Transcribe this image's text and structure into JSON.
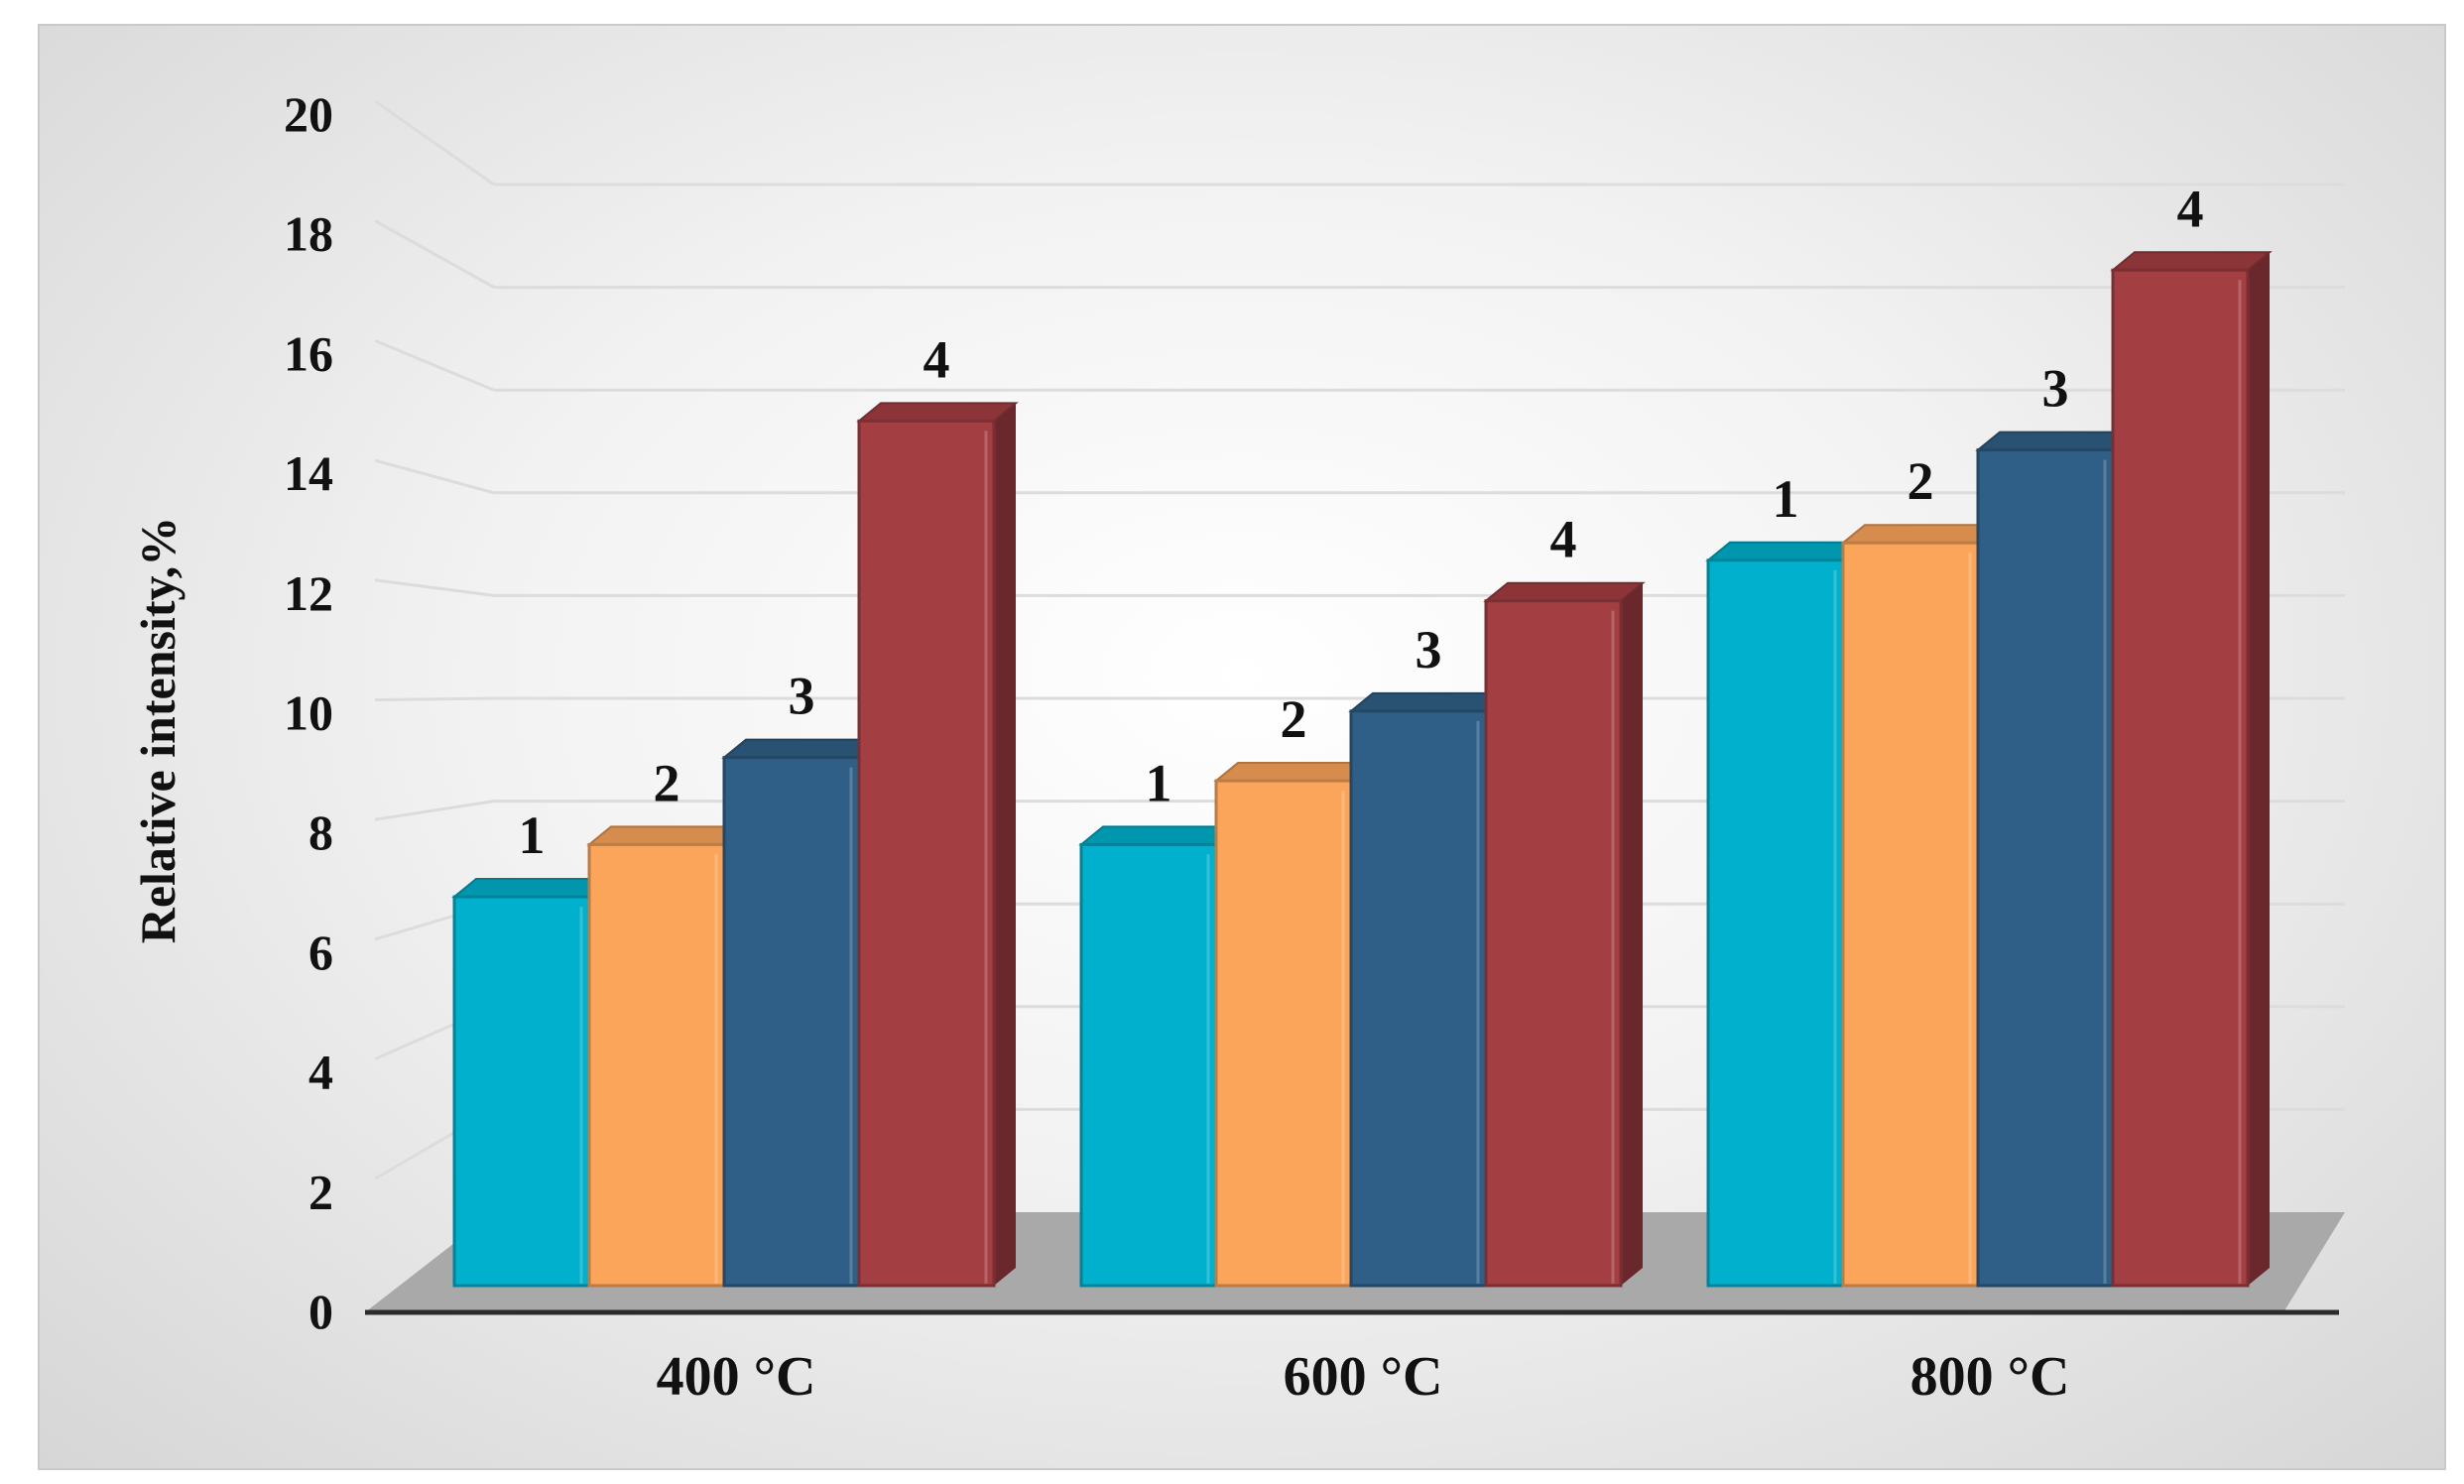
{
  "chart_data": {
    "type": "bar",
    "style": "3d-clustered-column",
    "title": "",
    "xlabel": "",
    "ylabel": "Relative intensity,%",
    "ylim": [
      0,
      20
    ],
    "yticks": [
      "0",
      "2",
      "4",
      "6",
      "8",
      "10",
      "12",
      "14",
      "16",
      "18",
      "20"
    ],
    "grid": true,
    "legend": "none",
    "categories": [
      "400 °C",
      "600 °C",
      "800 °C"
    ],
    "series": [
      {
        "label": "1",
        "color": "#00b0cc",
        "values": [
          6.7,
          7.6,
          12.5
        ]
      },
      {
        "label": "2",
        "color": "#fba55a",
        "values": [
          7.6,
          8.7,
          12.8
        ]
      },
      {
        "label": "3",
        "color": "#2f5f86",
        "values": [
          9.1,
          9.9,
          14.4
        ]
      },
      {
        "label": "4",
        "color": "#a33e43",
        "values": [
          14.9,
          11.8,
          17.5
        ]
      }
    ]
  }
}
